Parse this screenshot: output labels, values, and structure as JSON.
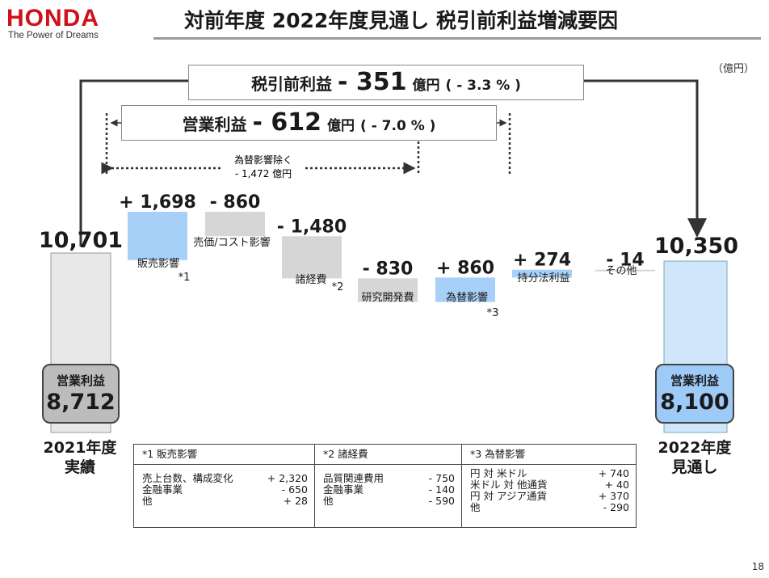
{
  "header": {
    "brand": "HONDA",
    "tagline": "The Power of Dreams",
    "title": "対前年度 2022年度見通し 税引前利益増減要因"
  },
  "unit": "（億円）",
  "summary": {
    "pretax": {
      "label": "税引前利益",
      "change": "- 351",
      "unit": "億円",
      "pct": "( - 3.3 % )"
    },
    "operating": {
      "label": "営業利益",
      "change": "- 612",
      "unit": "億円",
      "pct": "( - 7.0 % )"
    },
    "excl_fx": {
      "label": "為替影響除く",
      "value": "- 1,472 億円"
    }
  },
  "chart_data": {
    "type": "bar",
    "subtype": "waterfall",
    "start": {
      "period": "2021年度\n実績",
      "pretax": 10701,
      "operating": 8712,
      "label": "10,701"
    },
    "end": {
      "period": "2022年度\n見通し",
      "pretax": 10350,
      "operating": 8100,
      "label": "10,350"
    },
    "categories": [
      "販売影響",
      "売価/コスト影響",
      "諸経費",
      "研究開発費",
      "為替影響",
      "持分法利益",
      "その他"
    ],
    "values": [
      1698,
      -860,
      -1480,
      -830,
      860,
      274,
      -14
    ],
    "value_labels": [
      "+ 1,698",
      "- 860",
      "- 1,480",
      "- 830",
      "+ 860",
      "+ 274",
      "- 14"
    ],
    "notes": [
      "*1",
      "",
      "*2",
      "",
      "*3",
      "",
      ""
    ],
    "colors": {
      "increase": "#a7d0f8",
      "decrease": "#d6d6d6",
      "start_bar": "#e8e8e8",
      "end_bar": "#cfe6fb"
    }
  },
  "pills": {
    "left": {
      "label": "営業利益",
      "value": "8,712"
    },
    "right": {
      "label": "営業利益",
      "value": "8,100"
    }
  },
  "years": {
    "left": {
      "line1": "2021年度",
      "line2": "実績"
    },
    "right": {
      "line1": "2022年度",
      "line2": "見通し"
    }
  },
  "footnotes": [
    {
      "title": "*1 販売影響",
      "rows": [
        {
          "item": "売上台数、構成変化",
          "value": "+ 2,320"
        },
        {
          "item": "金融事業",
          "value": "- 650"
        },
        {
          "item": "他",
          "value": "+ 28"
        }
      ]
    },
    {
      "title": "*2 諸経費",
      "rows": [
        {
          "item": "品質関連費用",
          "value": "- 750"
        },
        {
          "item": "金融事業",
          "value": "- 140"
        },
        {
          "item": "他",
          "value": "- 590"
        }
      ]
    },
    {
      "title": "*3 為替影響",
      "rows": [
        {
          "item": "円 対 米ドル",
          "value": "+ 740"
        },
        {
          "item": "米ドル 対 他通貨",
          "value": "+ 40"
        },
        {
          "item": "円 対 アジア通貨",
          "value": "+ 370"
        },
        {
          "item": "他",
          "value": "- 290"
        }
      ]
    }
  ],
  "page_number": "18"
}
